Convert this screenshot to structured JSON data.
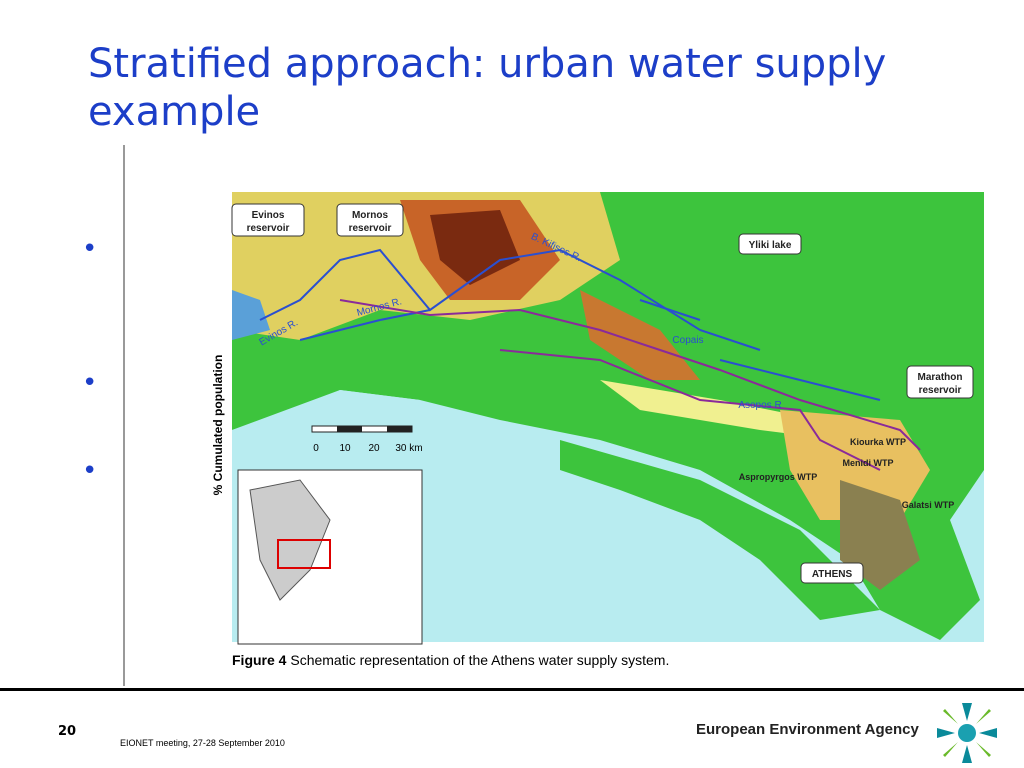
{
  "header": {
    "title": "Stratified approach: urban water supply example"
  },
  "background_chart": {
    "y_axis_label": "% Cumulated population"
  },
  "map": {
    "callouts": [
      "Evinos reservoir",
      "Mornos reservoir",
      "Yliki lake",
      "Marathon reservoir",
      "ATHENS"
    ],
    "rivers": [
      "Evinos R.",
      "Mornos R.",
      "B. Kifisos R.",
      "Copais",
      "Asopos R"
    ],
    "plants": [
      "Kiourka WTP",
      "Menidi WTP",
      "Aspropyrgos WTP",
      "Galatsi WTP"
    ],
    "scale": [
      "0",
      "10",
      "20",
      "30 km"
    ],
    "caption_label": "Figure 4",
    "caption_text": "Schematic representation of the Athens water supply system."
  },
  "footer": {
    "page_number": "20",
    "meeting": "EIONET meeting, 27-28 September 2010",
    "organization": "European Environment Agency"
  }
}
